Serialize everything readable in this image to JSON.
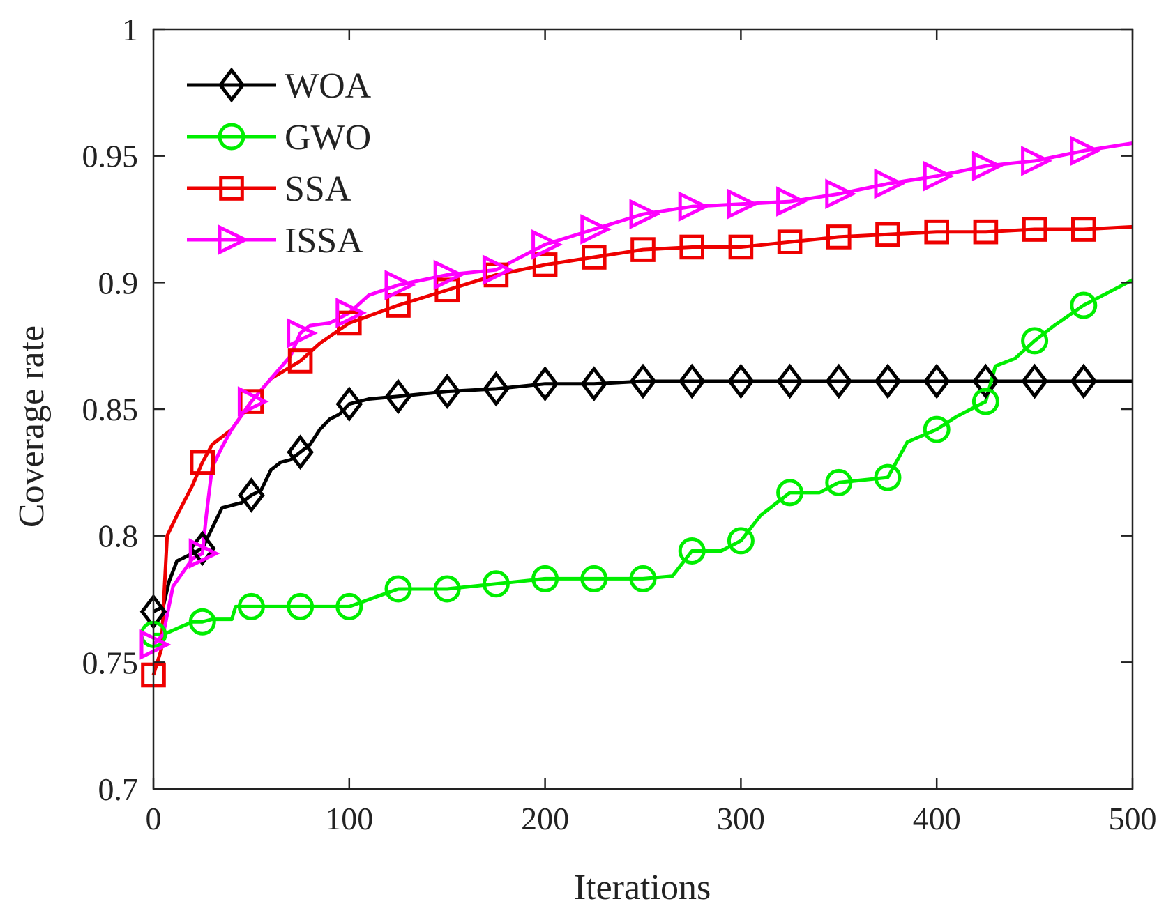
{
  "chart_data": {
    "type": "line",
    "title": "",
    "xlabel": "Iterations",
    "ylabel": "Coverage rate",
    "xlim": [
      0,
      500
    ],
    "ylim": [
      0.7,
      1.0
    ],
    "x_ticks": [
      0,
      100,
      200,
      300,
      400,
      500
    ],
    "x_tick_labels": [
      "0",
      "100",
      "200",
      "300",
      "400",
      "500"
    ],
    "y_ticks": [
      0.7,
      0.75,
      0.8,
      0.85,
      0.9,
      0.95,
      1.0
    ],
    "y_tick_labels": [
      "0.7",
      "0.75",
      "0.8",
      "0.85",
      "0.9",
      "0.95",
      "1"
    ],
    "grid": false,
    "legend_position": "top-left",
    "series": [
      {
        "name": "WOA",
        "color": "#000000",
        "marker": "diamond",
        "x": [
          0,
          5,
          8,
          12,
          20,
          25,
          30,
          35,
          40,
          45,
          50,
          55,
          60,
          65,
          70,
          75,
          80,
          85,
          90,
          95,
          100,
          110,
          125,
          150,
          175,
          200,
          225,
          250,
          275,
          300,
          325,
          350,
          375,
          400,
          425,
          450,
          475,
          500
        ],
        "values": [
          0.77,
          0.772,
          0.782,
          0.79,
          0.793,
          0.795,
          0.803,
          0.811,
          0.812,
          0.813,
          0.816,
          0.818,
          0.826,
          0.829,
          0.83,
          0.833,
          0.836,
          0.842,
          0.846,
          0.848,
          0.852,
          0.854,
          0.855,
          0.857,
          0.858,
          0.86,
          0.86,
          0.861,
          0.861,
          0.861,
          0.861,
          0.861,
          0.861,
          0.861,
          0.861,
          0.861,
          0.861,
          0.861
        ]
      },
      {
        "name": "GWO",
        "color": "#00ee00",
        "marker": "circle",
        "x": [
          0,
          5,
          20,
          25,
          30,
          40,
          42,
          50,
          75,
          100,
          125,
          150,
          175,
          200,
          225,
          250,
          265,
          275,
          290,
          300,
          310,
          325,
          340,
          350,
          375,
          385,
          400,
          410,
          425,
          430,
          440,
          450,
          460,
          475,
          490,
          500
        ],
        "values": [
          0.761,
          0.761,
          0.766,
          0.766,
          0.767,
          0.767,
          0.772,
          0.772,
          0.772,
          0.772,
          0.779,
          0.779,
          0.781,
          0.783,
          0.783,
          0.783,
          0.784,
          0.794,
          0.794,
          0.798,
          0.808,
          0.817,
          0.817,
          0.821,
          0.823,
          0.837,
          0.842,
          0.847,
          0.853,
          0.867,
          0.87,
          0.877,
          0.883,
          0.891,
          0.897,
          0.901
        ]
      },
      {
        "name": "SSA",
        "color": "#ee0000",
        "marker": "square",
        "x": [
          0,
          4,
          7,
          12,
          20,
          25,
          30,
          40,
          50,
          60,
          75,
          85,
          100,
          125,
          150,
          175,
          200,
          225,
          250,
          275,
          300,
          325,
          350,
          375,
          400,
          425,
          450,
          475,
          500
        ],
        "values": [
          0.745,
          0.755,
          0.8,
          0.808,
          0.82,
          0.829,
          0.836,
          0.842,
          0.853,
          0.862,
          0.869,
          0.876,
          0.884,
          0.891,
          0.897,
          0.903,
          0.907,
          0.91,
          0.913,
          0.914,
          0.914,
          0.916,
          0.918,
          0.919,
          0.92,
          0.92,
          0.921,
          0.921,
          0.922
        ]
      },
      {
        "name": "ISSA",
        "color": "#ff00ff",
        "marker": "triangle-right",
        "x": [
          0,
          5,
          10,
          20,
          25,
          27,
          30,
          35,
          40,
          50,
          60,
          70,
          75,
          80,
          90,
          100,
          110,
          125,
          150,
          175,
          200,
          225,
          250,
          275,
          300,
          325,
          350,
          375,
          400,
          425,
          450,
          475,
          500
        ],
        "values": [
          0.757,
          0.761,
          0.78,
          0.791,
          0.793,
          0.808,
          0.827,
          0.835,
          0.842,
          0.853,
          0.862,
          0.871,
          0.88,
          0.883,
          0.884,
          0.888,
          0.895,
          0.899,
          0.903,
          0.905,
          0.915,
          0.921,
          0.927,
          0.93,
          0.931,
          0.932,
          0.935,
          0.939,
          0.942,
          0.946,
          0.948,
          0.952,
          0.955
        ]
      }
    ]
  }
}
